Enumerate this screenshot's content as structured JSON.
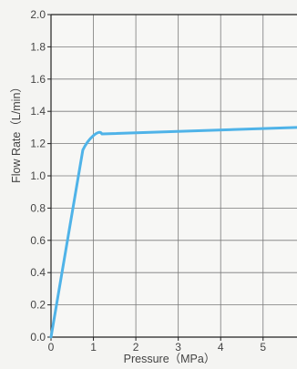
{
  "chart_data": {
    "type": "line",
    "title": "",
    "xlabel": "Pressure（MPa）",
    "ylabel": "Flow Rate（L/min）",
    "xlim": [
      0,
      5.8
    ],
    "ylim": [
      0,
      2.0
    ],
    "x_ticks": [
      "0",
      "1",
      "2",
      "3",
      "4",
      "5"
    ],
    "y_ticks": [
      "0.0",
      "0.2",
      "0.4",
      "0.6",
      "0.8",
      "1.0",
      "1.2",
      "1.4",
      "1.6",
      "1.8",
      "2.0"
    ],
    "grid": true,
    "colors": {
      "line": "#4fb3e8",
      "grid": "#7a7a7a",
      "axis": "#222222",
      "background": "#f4f4f2"
    },
    "series": [
      {
        "x": [
          0,
          0.75,
          0.85,
          1.0,
          1.2,
          5.8
        ],
        "y": [
          0,
          1.16,
          1.215,
          1.25,
          1.26,
          1.3
        ]
      }
    ]
  }
}
